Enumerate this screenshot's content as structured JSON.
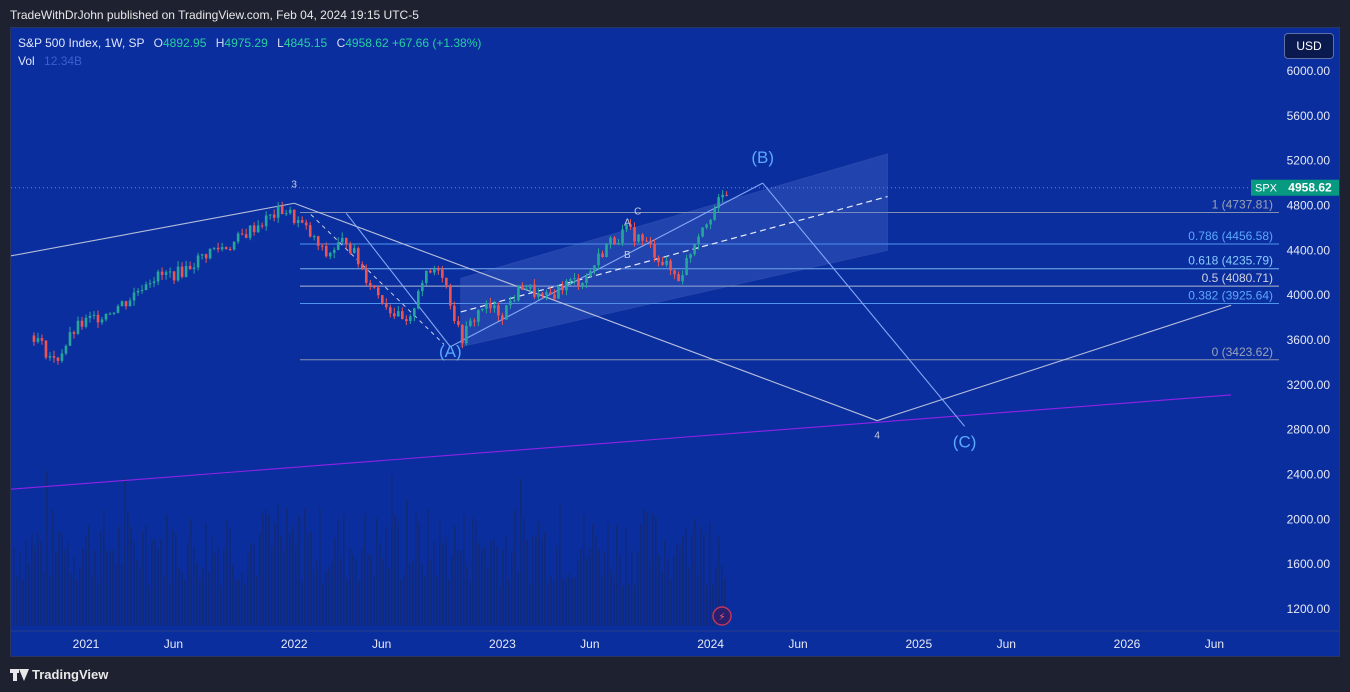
{
  "header": {
    "publisher_text": "TradeWithDrJohn published on TradingView.com, Feb 04, 2024 19:15 UTC-5"
  },
  "legend": {
    "symbol": "S&P 500 Index, 1W, SP",
    "open_label": "O",
    "open": "4892.95",
    "high_label": "H",
    "high": "4975.29",
    "low_label": "L",
    "low": "4845.15",
    "close_label": "C",
    "close": "4958.62",
    "change": "+67.66 (+1.38%)",
    "vol_label": "Vol",
    "vol_value": "12.34B"
  },
  "currency_button": "USD",
  "price_tag": {
    "symbol": "SPX",
    "value": "4958.62",
    "color": "#089981"
  },
  "footer": {
    "brand": "TradingView"
  },
  "chart_data": {
    "type": "candlestick",
    "timeframe": "1W",
    "y_axis": {
      "ticks": [
        1200,
        1600,
        2000,
        2400,
        2800,
        3200,
        3600,
        4000,
        4400,
        4800,
        5200,
        5600,
        6000
      ],
      "tick_labels": [
        "1200.00",
        "1600.00",
        "2000.00",
        "2400.00",
        "2800.00",
        "3200.00",
        "3600.00",
        "4000.00",
        "4400.00",
        "4800.00",
        "5200.00",
        "5600.00",
        "6000.00"
      ]
    },
    "x_axis": {
      "tick_labels": [
        "2021",
        "Jun",
        "2022",
        "Jun",
        "2023",
        "Jun",
        "2024",
        "Jun",
        "2025",
        "Jun",
        "2026",
        "Jun"
      ]
    },
    "colors": {
      "background": "#0b2e9e",
      "up": "#26a69a",
      "down": "#ef5350",
      "accent_line": "#9c27b0",
      "fib": "#2962ff"
    },
    "price_path": [
      [
        2020.75,
        3640
      ],
      [
        2020.85,
        3400
      ],
      [
        2020.95,
        3700
      ],
      [
        2021.0,
        3760
      ],
      [
        2021.1,
        3850
      ],
      [
        2021.2,
        3950
      ],
      [
        2021.3,
        4150
      ],
      [
        2021.45,
        4200
      ],
      [
        2021.6,
        4400
      ],
      [
        2021.7,
        4450
      ],
      [
        2021.8,
        4600
      ],
      [
        2021.95,
        4770
      ],
      [
        2022.05,
        4600
      ],
      [
        2022.15,
        4350
      ],
      [
        2022.25,
        4500
      ],
      [
        2022.35,
        4150
      ],
      [
        2022.45,
        3900
      ],
      [
        2022.55,
        3700
      ],
      [
        2022.6,
        4100
      ],
      [
        2022.7,
        4280
      ],
      [
        2022.75,
        3950
      ],
      [
        2022.8,
        3600
      ],
      [
        2022.9,
        3900
      ],
      [
        2023.0,
        3840
      ],
      [
        2023.1,
        4100
      ],
      [
        2023.2,
        3950
      ],
      [
        2023.3,
        4100
      ],
      [
        2023.4,
        4150
      ],
      [
        2023.5,
        4450
      ],
      [
        2023.6,
        4580
      ],
      [
        2023.7,
        4450
      ],
      [
        2023.8,
        4230
      ],
      [
        2023.85,
        4150
      ],
      [
        2023.95,
        4600
      ],
      [
        2024.05,
        4850
      ],
      [
        2024.09,
        4958.62
      ]
    ],
    "fibonacci": [
      {
        "label": "1 (4737.81)",
        "ratio": "1",
        "value": 4737.81,
        "color": "#9aa3b5"
      },
      {
        "label": "0.786 (4456.58)",
        "ratio": "0.786",
        "value": 4456.58,
        "color": "#5aa8ff"
      },
      {
        "label": "0.618 (4235.79)",
        "ratio": "0.618",
        "value": 4235.79,
        "color": "#88ccff"
      },
      {
        "label": "0.5 (4080.71)",
        "ratio": "0.5",
        "value": 4080.71,
        "color": "#cfd3dc"
      },
      {
        "label": "0.382 (3925.64)",
        "ratio": "0.382",
        "value": 3925.64,
        "color": "#5aa8ff"
      },
      {
        "label": "0 (3423.62)",
        "ratio": "0",
        "value": 3423.62,
        "color": "#9aa3b5"
      }
    ],
    "wave_labels": [
      {
        "text": "3",
        "x": 2022.0,
        "y": 4960
      },
      {
        "text": "(A)",
        "x": 2022.75,
        "y": 3450
      },
      {
        "text": "(B)",
        "x": 2024.25,
        "y": 5180
      },
      {
        "text": "4",
        "x": 2024.8,
        "y": 2720
      },
      {
        "text": "(C)",
        "x": 2025.22,
        "y": 2640
      },
      {
        "text": "A",
        "x": 2023.6,
        "y": 4620
      },
      {
        "text": "C",
        "x": 2023.65,
        "y": 4720
      },
      {
        "text": "B",
        "x": 2023.6,
        "y": 4330
      }
    ],
    "trend_lines": [
      {
        "name": "wave-line-1",
        "points": [
          [
            2020.58,
            4330
          ],
          [
            2022.0,
            4820
          ]
        ]
      },
      {
        "name": "wave-line-2",
        "points": [
          [
            2022.0,
            4820
          ],
          [
            2024.8,
            2880
          ]
        ]
      },
      {
        "name": "wave-line-3",
        "points": [
          [
            2024.8,
            2880
          ],
          [
            2026.5,
            3910
          ]
        ]
      },
      {
        "name": "purple-trendline",
        "points": [
          [
            2020.58,
            2260
          ],
          [
            2026.5,
            3110
          ]
        ]
      },
      {
        "name": "abc-line-1",
        "points": [
          [
            2022.25,
            4730
          ],
          [
            2022.75,
            3540
          ]
        ]
      },
      {
        "name": "abc-line-2",
        "points": [
          [
            2022.75,
            3540
          ],
          [
            2024.25,
            5000
          ]
        ]
      },
      {
        "name": "abc-line-3",
        "points": [
          [
            2024.25,
            5000
          ],
          [
            2025.22,
            2830
          ]
        ]
      }
    ],
    "channel": {
      "bottom": [
        [
          2022.8,
          3540
        ],
        [
          2024.85,
          4400
        ]
      ],
      "top": [
        [
          2022.8,
          4150
        ],
        [
          2024.85,
          5260
        ]
      ],
      "median": [
        [
          2022.8,
          3850
        ],
        [
          2024.85,
          4880
        ]
      ]
    }
  }
}
